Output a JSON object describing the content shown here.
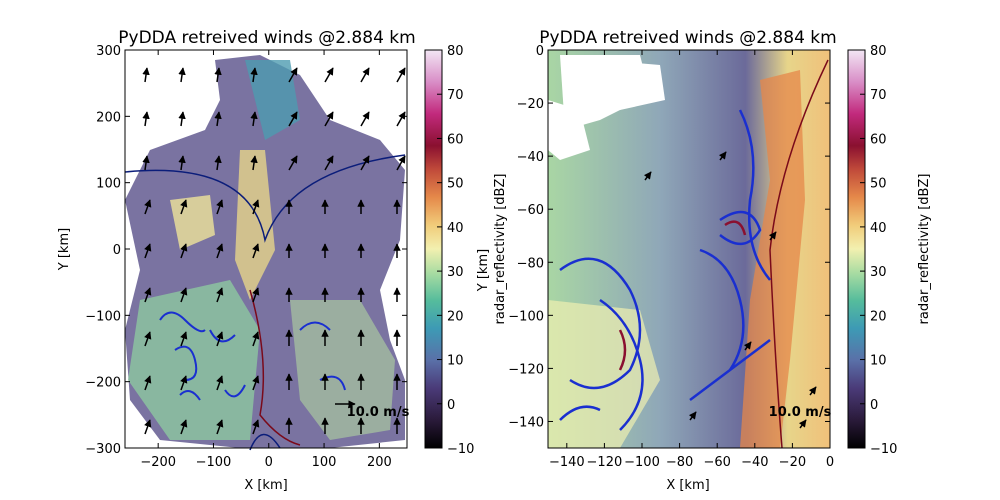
{
  "chart_data": [
    {
      "type": "heatmap",
      "title": "PyDDA retreived winds @2.884 km",
      "xlabel": "X [km]",
      "ylabel": "Y [km]",
      "xlim": [
        -260,
        250
      ],
      "ylim": [
        -300,
        300
      ],
      "x_ticks": [
        -200,
        -100,
        0,
        100,
        200
      ],
      "y_ticks": [
        -300,
        -200,
        -100,
        0,
        100,
        200,
        300
      ],
      "reference_vector": "10.0 m/s",
      "colorbar": {
        "label": "",
        "range": [
          -10,
          80
        ],
        "ticks": [
          -10,
          0,
          10,
          20,
          30,
          40,
          50,
          60,
          70,
          80
        ]
      }
    },
    {
      "type": "heatmap",
      "title": "PyDDA retreived winds @2.884 km",
      "xlabel": "X [km]",
      "ylabel": "Y [km]",
      "xlim": [
        -150,
        0
      ],
      "ylim": [
        -150,
        0
      ],
      "x_ticks": [
        -140,
        -120,
        -100,
        -80,
        -60,
        -40,
        -20,
        0
      ],
      "y_ticks": [
        -140,
        -120,
        -100,
        -80,
        -60,
        -40,
        -20,
        0
      ],
      "reference_vector": "10.0 m/s",
      "colorbar": {
        "label": "radar_reflectivity [dBZ]",
        "range": [
          -10,
          80
        ],
        "ticks": [
          -10,
          0,
          10,
          20,
          30,
          40,
          50,
          60,
          70,
          80
        ]
      }
    }
  ],
  "colorbar_right_label": "radar_reflectivity [dBZ]"
}
